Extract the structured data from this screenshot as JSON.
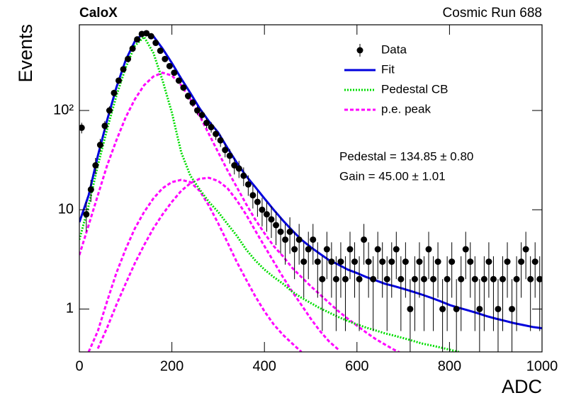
{
  "chart_data": {
    "type": "errorbar-fit",
    "title": "CaloX",
    "subtitle": "Cosmic Run 688",
    "x_label": "ADC",
    "y_label": "Events",
    "annotations": [
      "Pedestal = 134.85 ± 0.80",
      "Gain = 45.00 ± 1.01"
    ],
    "xlim": [
      0,
      1000
    ],
    "ylim": [
      0.37,
      730
    ],
    "log_y": true,
    "xticks": [
      0,
      200,
      400,
      600,
      800,
      1000
    ],
    "yticks": [
      1,
      10,
      {
        "value": 100,
        "label": "10²"
      }
    ],
    "legend": "upper-right",
    "curve_x": [
      0,
      20,
      40,
      60,
      80,
      100,
      120,
      140,
      160,
      180,
      200,
      220,
      240,
      260,
      280,
      300,
      320,
      340,
      360,
      380,
      400,
      420,
      440,
      460,
      480,
      500,
      520,
      540,
      560,
      580,
      600,
      620,
      640,
      660,
      680,
      700,
      720,
      740,
      760,
      780,
      800,
      820,
      840,
      860,
      880,
      900,
      920,
      940,
      960,
      980,
      1000
    ],
    "series": [
      {
        "name": "Data",
        "type": "errorbar",
        "color": "#000000",
        "x": [
          5,
          15,
          25,
          35,
          45,
          55,
          65,
          75,
          85,
          95,
          105,
          115,
          125,
          135,
          145,
          155,
          165,
          175,
          185,
          195,
          205,
          215,
          225,
          235,
          245,
          255,
          265,
          275,
          285,
          295,
          305,
          315,
          325,
          335,
          345,
          355,
          365,
          375,
          385,
          395,
          405,
          415,
          425,
          435,
          445,
          455,
          465,
          475,
          485,
          495,
          505,
          515,
          525,
          535,
          545,
          555,
          565,
          575,
          585,
          595,
          605,
          615,
          625,
          635,
          645,
          655,
          665,
          675,
          685,
          695,
          705,
          715,
          725,
          735,
          745,
          755,
          765,
          775,
          785,
          795,
          805,
          815,
          825,
          835,
          845,
          855,
          865,
          875,
          885,
          895,
          905,
          915,
          925,
          935,
          945,
          955,
          965,
          975,
          985,
          995
        ],
        "values": [
          67,
          9,
          16,
          28,
          45,
          70,
          100,
          150,
          200,
          260,
          330,
          420,
          520,
          590,
          600,
          560,
          480,
          400,
          330,
          280,
          240,
          200,
          170,
          140,
          120,
          100,
          90,
          75,
          68,
          58,
          50,
          40,
          35,
          28,
          26,
          22,
          18,
          14,
          12,
          10,
          9,
          8,
          7,
          6,
          5,
          6,
          4,
          5,
          3,
          4,
          5,
          3,
          2,
          4,
          3,
          2,
          3,
          2,
          4,
          3,
          2,
          5,
          3,
          2,
          4,
          3,
          2,
          3,
          4,
          2,
          3,
          1,
          2,
          3,
          2,
          4,
          2,
          3,
          1,
          2,
          3,
          1,
          2,
          4,
          3,
          2,
          1,
          2,
          3,
          2,
          1,
          2,
          3,
          1,
          2,
          3,
          4,
          2,
          3,
          2
        ],
        "errors": [
          8.2,
          3,
          4,
          5.3,
          6.7,
          8.4,
          10,
          12.2,
          14.1,
          16.1,
          18.2,
          20.5,
          22.8,
          24.3,
          24.5,
          23.7,
          21.9,
          20,
          18.2,
          16.7,
          15.5,
          14.1,
          13,
          11.8,
          11,
          10,
          9.5,
          8.7,
          8.2,
          7.6,
          7.1,
          6.3,
          5.9,
          5.3,
          5.1,
          4.7,
          4.2,
          3.7,
          3.5,
          3.2,
          3,
          2.8,
          2.6,
          2.4,
          2.2,
          2.4,
          2,
          2.2,
          1.7,
          2,
          2.2,
          1.7,
          1.4,
          2,
          1.7,
          1.4,
          1.7,
          1.4,
          2,
          1.7,
          1.4,
          2.2,
          1.7,
          1.4,
          2,
          1.7,
          1.4,
          1.7,
          2,
          1.4,
          1.7,
          1,
          1.4,
          1.7,
          1.4,
          2,
          1.4,
          1.7,
          1,
          1.4,
          1.7,
          1,
          1.4,
          2,
          1.7,
          1.4,
          1,
          1.4,
          1.7,
          1.4,
          1,
          1.4,
          1.7,
          1,
          1.4,
          1.7,
          2,
          1.4,
          1.7,
          1.4
        ]
      },
      {
        "name": "Fit",
        "type": "line",
        "color": "#0000dd",
        "style": "solid",
        "values": [
          7.5,
          14,
          35,
          80,
          170,
          320,
          500,
          610,
          560,
          420,
          300,
          210,
          150,
          105,
          78,
          60,
          42,
          30,
          22,
          17,
          13,
          10,
          7.8,
          6.2,
          5.0,
          4.2,
          3.6,
          3.1,
          2.8,
          2.5,
          2.3,
          2.1,
          1.95,
          1.8,
          1.7,
          1.6,
          1.5,
          1.4,
          1.3,
          1.2,
          1.1,
          1.03,
          0.97,
          0.91,
          0.85,
          0.8,
          0.76,
          0.72,
          0.69,
          0.66,
          0.64
        ]
      },
      {
        "name": "Pedestal CB",
        "type": "line",
        "color": "#00dd00",
        "style": "dotted",
        "values": [
          5,
          11,
          28,
          65,
          140,
          270,
          450,
          550,
          380,
          200,
          95,
          38,
          22,
          16,
          12,
          9.5,
          7.2,
          5.5,
          4.0,
          3.1,
          2.5,
          2.1,
          1.8,
          1.5,
          1.3,
          1.15,
          1.02,
          0.92,
          0.83,
          0.76,
          0.7,
          0.65,
          0.61,
          0.57,
          0.54,
          0.51,
          0.48,
          0.45,
          0.43,
          0.41,
          0.39,
          0.37,
          null,
          null,
          null,
          null,
          null,
          null,
          null,
          null,
          null
        ]
      },
      {
        "name": "p.e. peak",
        "type": "multiline",
        "color": "#ff00ff",
        "style": "dashed",
        "curves": [
          [
            3.5,
            7,
            14,
            28,
            50,
            85,
            130,
            180,
            220,
            240,
            225,
            180,
            130,
            88,
            58,
            38,
            25,
            17,
            11.5,
            8,
            5.8,
            4.3,
            3.4,
            2.6,
            2.1,
            1.7,
            1.4,
            1.15,
            0.95,
            0.8,
            0.68,
            0.58,
            0.5,
            0.44,
            0.39,
            0.35,
            null,
            null,
            null,
            null,
            null,
            null,
            null,
            null,
            null,
            null,
            null,
            null,
            null,
            null,
            null
          ],
          [
            null,
            0.37,
            0.6,
            1.2,
            2.3,
            4,
            6.5,
            9.5,
            13,
            16.5,
            19,
            20,
            19,
            15.5,
            11,
            7.3,
            4.7,
            3.0,
            2.0,
            1.35,
            0.95,
            0.7,
            0.55,
            0.45,
            0.37,
            null,
            null,
            null,
            null,
            null,
            null,
            null,
            null,
            null,
            null,
            null,
            null,
            null,
            null,
            null,
            null,
            null,
            null,
            null,
            null,
            null,
            null,
            null,
            null,
            null,
            null
          ],
          [
            null,
            null,
            0.4,
            0.65,
            1.1,
            1.8,
            2.9,
            4.4,
            6.5,
            9,
            12,
            15.5,
            18.5,
            20.5,
            21,
            19.5,
            16.5,
            12.5,
            9,
            6.2,
            4.3,
            3.0,
            2.1,
            1.5,
            1.1,
            0.8,
            0.6,
            0.47,
            0.39,
            null,
            null,
            null,
            null,
            null,
            null,
            null,
            null,
            null,
            null,
            null,
            null,
            null,
            null,
            null,
            null,
            null,
            null,
            null,
            null,
            null,
            null
          ]
        ]
      }
    ]
  }
}
